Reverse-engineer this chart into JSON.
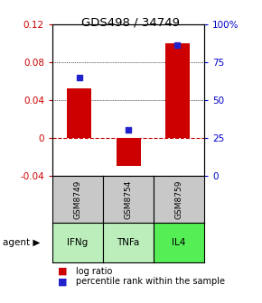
{
  "title": "GDS498 / 34749",
  "samples": [
    "GSM8749",
    "GSM8754",
    "GSM8759"
  ],
  "agents": [
    "IFNg",
    "TNFa",
    "IL4"
  ],
  "log_ratios": [
    0.052,
    -0.03,
    0.1
  ],
  "percentile_ranks": [
    65,
    30,
    86
  ],
  "ylim_left": [
    -0.04,
    0.12
  ],
  "ylim_right": [
    0,
    100
  ],
  "yticks_left": [
    -0.04,
    0,
    0.04,
    0.08,
    0.12
  ],
  "yticks_right": [
    0,
    25,
    50,
    75,
    100
  ],
  "ytick_labels_right": [
    "0",
    "25",
    "50",
    "75",
    "100%"
  ],
  "bar_color": "#cc0000",
  "dot_color": "#2222cc",
  "zero_line_color": "#cc0000",
  "sample_box_color": "#c8c8c8",
  "agent_box_colors": [
    "#bbeebb",
    "#bbeebb",
    "#55ee55"
  ],
  "title_color": "#000000",
  "left_axis_color": "#cc0000",
  "right_axis_color": "#0000cc",
  "bar_width": 0.5
}
